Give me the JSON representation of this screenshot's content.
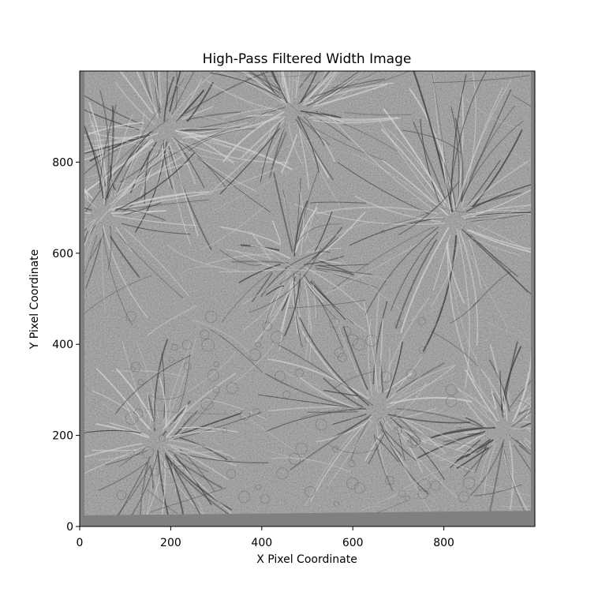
{
  "chart_data": {
    "type": "heatmap",
    "title": "High-Pass Filtered Width Image",
    "xlabel": "X Pixel Coordinate",
    "ylabel": "Y Pixel Coordinate",
    "xlim": [
      0,
      1000
    ],
    "ylim": [
      0,
      1000
    ],
    "x_ticks": [
      0,
      200,
      400,
      600,
      800
    ],
    "y_ticks": [
      0,
      200,
      400,
      600,
      800
    ],
    "x_tick_labels": [
      "0",
      "200",
      "400",
      "600",
      "800"
    ],
    "y_tick_labels": [
      "0",
      "200",
      "400",
      "600",
      "800"
    ],
    "colormap": "gray",
    "grid": false,
    "legend": "none",
    "image_content": "high-pass filtered solar chromosphere: fibrils radiating from network concentrations",
    "colors": {
      "background": "#808080",
      "axes": "#000000"
    }
  }
}
